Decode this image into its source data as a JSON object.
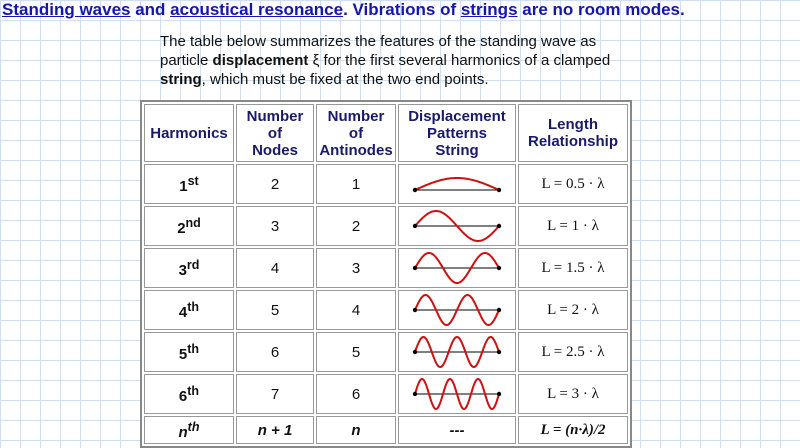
{
  "header": {
    "title": [
      "Standing waves",
      " and ",
      "acoustical resonance",
      ". Vibrations of ",
      "strings",
      " are no room modes."
    ],
    "intro": [
      "The table below summarizes the features of the standing wave as particle ",
      "displacement",
      " ξ for the first several harmonics of a clamped ",
      "string",
      ", which must be fixed at the two end points."
    ]
  },
  "table": {
    "columns": [
      [
        "Harmonics"
      ],
      [
        "Number",
        "of",
        "Nodes"
      ],
      [
        "Number",
        "of",
        "Antinodes"
      ],
      [
        "Displacement",
        "Patterns",
        "String"
      ],
      [
        "Length",
        "Relationship"
      ]
    ],
    "rows": [
      {
        "harmonic": "1",
        "suffix": "st",
        "nodes": "2",
        "antinodes": "1",
        "length": "L = 0.5 · λ"
      },
      {
        "harmonic": "2",
        "suffix": "nd",
        "nodes": "3",
        "antinodes": "2",
        "length": "L = 1 · λ"
      },
      {
        "harmonic": "3",
        "suffix": "rd",
        "nodes": "4",
        "antinodes": "3",
        "length": "L = 1.5 · λ"
      },
      {
        "harmonic": "4",
        "suffix": "th",
        "nodes": "5",
        "antinodes": "4",
        "length": "L = 2 · λ"
      },
      {
        "harmonic": "5",
        "suffix": "th",
        "nodes": "6",
        "antinodes": "5",
        "length": "L = 2.5 · λ"
      },
      {
        "harmonic": "6",
        "suffix": "th",
        "nodes": "7",
        "antinodes": "6",
        "length": "L = 3 · λ"
      },
      {
        "harmonic": "n",
        "suffix": "th",
        "nodes": "n + 1",
        "antinodes": "n",
        "pattern": "---",
        "length": "L = (n·λ)/2"
      }
    ]
  }
}
